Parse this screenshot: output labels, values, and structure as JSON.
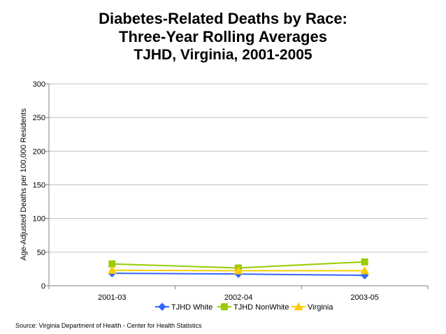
{
  "title": {
    "line1": "Diabetes-Related Deaths by Race:",
    "line2": "Three-Year Rolling Averages",
    "line3": "TJHD, Virginia, 2001-2005"
  },
  "source": "Source:  Virginia Department of Health - Center for Health Statistics",
  "colors": {
    "tjhd_white": "#3366ff",
    "tjhd_nonwhite": "#99cc00",
    "virginia": "#ffcc00",
    "grid": "#c0c0c0",
    "axis": "#808080"
  },
  "chart_data": {
    "type": "line",
    "title": "Diabetes-Related Deaths by Race: Three-Year Rolling Averages TJHD, Virginia, 2001-2005",
    "xlabel": "",
    "ylabel": "Age-Adjusted Deaths per 100,000 Residents",
    "categories": [
      "2001-03",
      "2002-04",
      "2003-05"
    ],
    "ylim": [
      0,
      300
    ],
    "yticks": [
      0,
      50,
      100,
      150,
      200,
      250,
      300
    ],
    "grid": true,
    "legend": "bottom",
    "series": [
      {
        "name": "TJHD White",
        "marker": "diamond",
        "color": "#3366ff",
        "values": [
          18.5,
          17.5,
          15.5
        ]
      },
      {
        "name": "TJHD NonWhite",
        "marker": "square",
        "color": "#99cc00",
        "values": [
          32.5,
          26.5,
          35.5
        ]
      },
      {
        "name": "Virginia",
        "marker": "triangle",
        "color": "#ffcc00",
        "values": [
          23.0,
          22.5,
          22.5
        ]
      }
    ]
  }
}
